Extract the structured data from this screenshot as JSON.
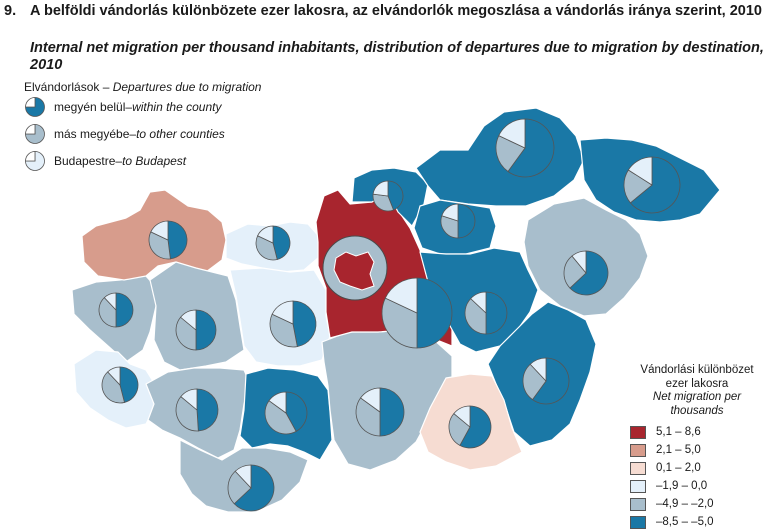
{
  "title": {
    "number": "9.",
    "hu": "A belföldi vándorlás különbözete ezer lakosra, az elvándorlók megoszlása a vándorlás iránya szerint, 2010",
    "en": "Internal net migration per thousand inhabitants, distribution of departures due to migration by destination, 2010"
  },
  "departures_legend": {
    "title_hu": "Elvándorlások",
    "title_sep": " – ",
    "title_en": "Departures due to migration",
    "items": [
      {
        "hu": "megyén belül",
        "sep": " – ",
        "en": "within the county",
        "color": "#1a78a6"
      },
      {
        "hu": "más megyébe",
        "sep": " – ",
        "en": "to other counties",
        "color": "#a8becc"
      },
      {
        "hu": "Budapestre ",
        "sep": " – ",
        "en": "to Budapest",
        "color": "#e4f0fa"
      }
    ]
  },
  "choropleth_legend": {
    "title_hu_1": "Vándorlási különbözet",
    "title_hu_2": "ezer lakosra",
    "title_en_1": "Net migration per",
    "title_en_2": "thousands",
    "classes": [
      {
        "label": "5,1 –   8,6",
        "color": "#a8252e"
      },
      {
        "label": "2,1 –   5,0",
        "color": "#d79c8c"
      },
      {
        "label": "0,1 –   2,0",
        "color": "#f6dcd2"
      },
      {
        "label": "–1,9 –   0,0",
        "color": "#e4f0fa"
      },
      {
        "label": "–4,9 – –2,0",
        "color": "#a8becc"
      },
      {
        "label": "–8,5 – –5,0",
        "color": "#1a78a6"
      }
    ]
  },
  "map": {
    "border_color": "#ffffff",
    "pie_colors": {
      "within": "#1a78a6",
      "other": "#a8becc",
      "budapest": "#e4f0fa"
    },
    "regions": [
      {
        "id": "gyor-moson-sopron",
        "net_class": 1
      },
      {
        "id": "komarom-esztergom",
        "net_class": 3
      },
      {
        "id": "vas",
        "net_class": 4
      },
      {
        "id": "veszprem",
        "net_class": 4
      },
      {
        "id": "fejer",
        "net_class": 3
      },
      {
        "id": "zala",
        "net_class": 3
      },
      {
        "id": "somogy",
        "net_class": 4
      },
      {
        "id": "tolna",
        "net_class": 5
      },
      {
        "id": "baranya",
        "net_class": 4
      },
      {
        "id": "bacs-kiskun",
        "net_class": 4
      },
      {
        "id": "pest",
        "net_class": 0
      },
      {
        "id": "budapest",
        "net_class": 0
      },
      {
        "id": "nograd",
        "net_class": 5
      },
      {
        "id": "borsod-abauj-zemplen",
        "net_class": 5
      },
      {
        "id": "heves",
        "net_class": 5
      },
      {
        "id": "szabolcs-szatmar-bereg",
        "net_class": 5
      },
      {
        "id": "hajdu-bihar",
        "net_class": 4
      },
      {
        "id": "jasz-nagykun-szolnok",
        "net_class": 5
      },
      {
        "id": "bekes",
        "net_class": 5
      },
      {
        "id": "csongrad",
        "net_class": 2
      }
    ],
    "pies": [
      {
        "id": "gyor-moson-sopron",
        "within": 0.48,
        "other": 0.34,
        "budapest": 0.18
      },
      {
        "id": "komarom-esztergom",
        "within": 0.46,
        "other": 0.36,
        "budapest": 0.18
      },
      {
        "id": "vas",
        "within": 0.5,
        "other": 0.38,
        "budapest": 0.12
      },
      {
        "id": "veszprem",
        "within": 0.5,
        "other": 0.36,
        "budapest": 0.14
      },
      {
        "id": "fejer",
        "within": 0.47,
        "other": 0.35,
        "budapest": 0.18
      },
      {
        "id": "zala",
        "within": 0.46,
        "other": 0.42,
        "budapest": 0.12
      },
      {
        "id": "somogy",
        "within": 0.49,
        "other": 0.37,
        "budapest": 0.14
      },
      {
        "id": "tolna",
        "within": 0.42,
        "other": 0.43,
        "budapest": 0.15
      },
      {
        "id": "baranya",
        "within": 0.63,
        "other": 0.25,
        "budapest": 0.12
      },
      {
        "id": "bacs-kiskun",
        "within": 0.5,
        "other": 0.35,
        "budapest": 0.15
      },
      {
        "id": "pest",
        "within": 0.5,
        "other": 0.32,
        "budapest": 0.18
      },
      {
        "id": "budapest",
        "within": 0.0,
        "other": 1.0,
        "budapest": 0.0
      },
      {
        "id": "nograd",
        "within": 0.44,
        "other": 0.33,
        "budapest": 0.23
      },
      {
        "id": "borsod-abauj-zemplen",
        "within": 0.6,
        "other": 0.22,
        "budapest": 0.18
      },
      {
        "id": "heves",
        "within": 0.5,
        "other": 0.3,
        "budapest": 0.2
      },
      {
        "id": "szabolcs-szatmar-bereg",
        "within": 0.64,
        "other": 0.2,
        "budapest": 0.16
      },
      {
        "id": "hajdu-bihar",
        "within": 0.63,
        "other": 0.26,
        "budapest": 0.11
      },
      {
        "id": "jasz-nagykun-szolnok",
        "within": 0.5,
        "other": 0.37,
        "budapest": 0.13
      },
      {
        "id": "bekes",
        "within": 0.6,
        "other": 0.28,
        "budapest": 0.12
      },
      {
        "id": "csongrad",
        "within": 0.58,
        "other": 0.28,
        "budapest": 0.14
      }
    ]
  }
}
